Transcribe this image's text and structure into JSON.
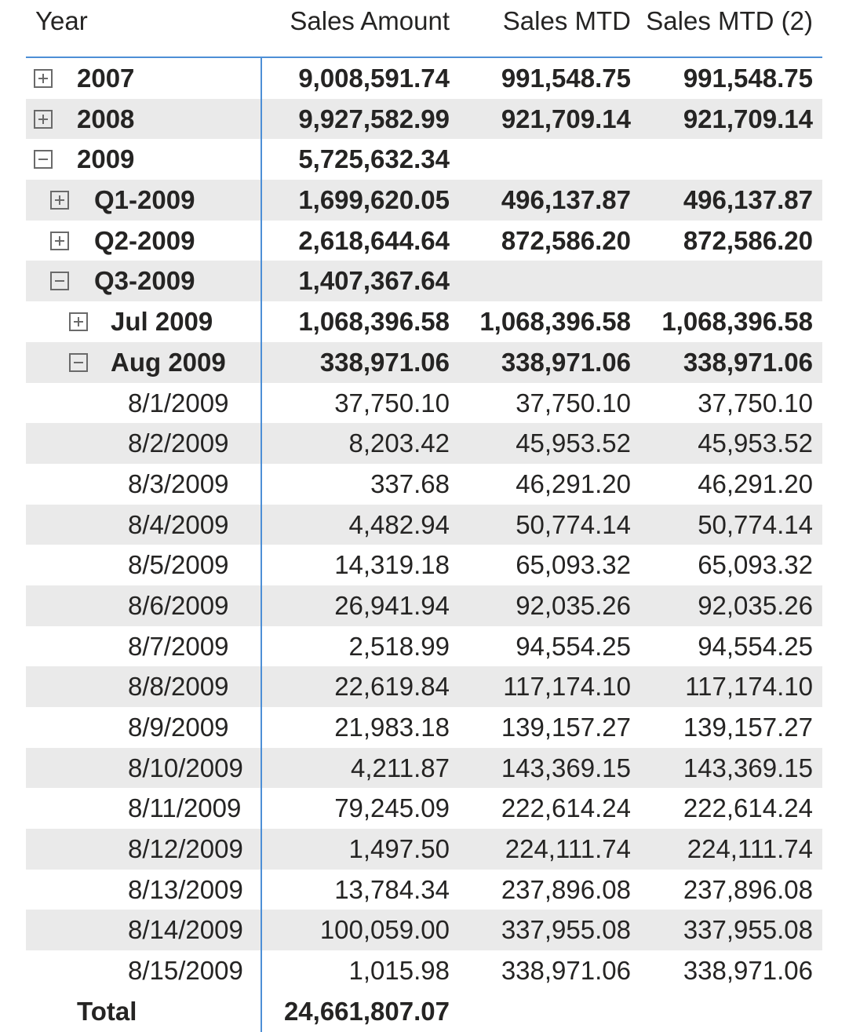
{
  "headers": {
    "year": "Year",
    "sales_amount": "Sales Amount",
    "sales_mtd": "Sales MTD",
    "sales_mtd2": "Sales MTD (2)"
  },
  "rows": [
    {
      "label": "2007",
      "level": 0,
      "toggle": "plus",
      "bold": true,
      "alt": false,
      "amount": "9,008,591.74",
      "mtd": "991,548.75",
      "mtd2": "991,548.75"
    },
    {
      "label": "2008",
      "level": 0,
      "toggle": "plus",
      "bold": true,
      "alt": true,
      "amount": "9,927,582.99",
      "mtd": "921,709.14",
      "mtd2": "921,709.14"
    },
    {
      "label": "2009",
      "level": 0,
      "toggle": "minus",
      "bold": true,
      "alt": false,
      "amount": "5,725,632.34",
      "mtd": "",
      "mtd2": ""
    },
    {
      "label": "Q1-2009",
      "level": 1,
      "toggle": "plus",
      "bold": true,
      "alt": true,
      "amount": "1,699,620.05",
      "mtd": "496,137.87",
      "mtd2": "496,137.87"
    },
    {
      "label": "Q2-2009",
      "level": 1,
      "toggle": "plus",
      "bold": true,
      "alt": false,
      "amount": "2,618,644.64",
      "mtd": "872,586.20",
      "mtd2": "872,586.20"
    },
    {
      "label": "Q3-2009",
      "level": 1,
      "toggle": "minus",
      "bold": true,
      "alt": true,
      "amount": "1,407,367.64",
      "mtd": "",
      "mtd2": ""
    },
    {
      "label": "Jul 2009",
      "level": 2,
      "toggle": "plus",
      "bold": true,
      "alt": false,
      "amount": "1,068,396.58",
      "mtd": "1,068,396.58",
      "mtd2": "1,068,396.58"
    },
    {
      "label": "Aug 2009",
      "level": 2,
      "toggle": "minus",
      "bold": true,
      "alt": true,
      "amount": "338,971.06",
      "mtd": "338,971.06",
      "mtd2": "338,971.06"
    },
    {
      "label": "8/1/2009",
      "level": 3,
      "toggle": "",
      "bold": false,
      "alt": false,
      "amount": "37,750.10",
      "mtd": "37,750.10",
      "mtd2": "37,750.10"
    },
    {
      "label": "8/2/2009",
      "level": 3,
      "toggle": "",
      "bold": false,
      "alt": true,
      "amount": "8,203.42",
      "mtd": "45,953.52",
      "mtd2": "45,953.52"
    },
    {
      "label": "8/3/2009",
      "level": 3,
      "toggle": "",
      "bold": false,
      "alt": false,
      "amount": "337.68",
      "mtd": "46,291.20",
      "mtd2": "46,291.20"
    },
    {
      "label": "8/4/2009",
      "level": 3,
      "toggle": "",
      "bold": false,
      "alt": true,
      "amount": "4,482.94",
      "mtd": "50,774.14",
      "mtd2": "50,774.14"
    },
    {
      "label": "8/5/2009",
      "level": 3,
      "toggle": "",
      "bold": false,
      "alt": false,
      "amount": "14,319.18",
      "mtd": "65,093.32",
      "mtd2": "65,093.32"
    },
    {
      "label": "8/6/2009",
      "level": 3,
      "toggle": "",
      "bold": false,
      "alt": true,
      "amount": "26,941.94",
      "mtd": "92,035.26",
      "mtd2": "92,035.26"
    },
    {
      "label": "8/7/2009",
      "level": 3,
      "toggle": "",
      "bold": false,
      "alt": false,
      "amount": "2,518.99",
      "mtd": "94,554.25",
      "mtd2": "94,554.25"
    },
    {
      "label": "8/8/2009",
      "level": 3,
      "toggle": "",
      "bold": false,
      "alt": true,
      "amount": "22,619.84",
      "mtd": "117,174.10",
      "mtd2": "117,174.10"
    },
    {
      "label": "8/9/2009",
      "level": 3,
      "toggle": "",
      "bold": false,
      "alt": false,
      "amount": "21,983.18",
      "mtd": "139,157.27",
      "mtd2": "139,157.27"
    },
    {
      "label": "8/10/2009",
      "level": 3,
      "toggle": "",
      "bold": false,
      "alt": true,
      "amount": "4,211.87",
      "mtd": "143,369.15",
      "mtd2": "143,369.15"
    },
    {
      "label": "8/11/2009",
      "level": 3,
      "toggle": "",
      "bold": false,
      "alt": false,
      "amount": "79,245.09",
      "mtd": "222,614.24",
      "mtd2": "222,614.24"
    },
    {
      "label": "8/12/2009",
      "level": 3,
      "toggle": "",
      "bold": false,
      "alt": true,
      "amount": "1,497.50",
      "mtd": "224,111.74",
      "mtd2": "224,111.74"
    },
    {
      "label": "8/13/2009",
      "level": 3,
      "toggle": "",
      "bold": false,
      "alt": false,
      "amount": "13,784.34",
      "mtd": "237,896.08",
      "mtd2": "237,896.08"
    },
    {
      "label": "8/14/2009",
      "level": 3,
      "toggle": "",
      "bold": false,
      "alt": true,
      "amount": "100,059.00",
      "mtd": "337,955.08",
      "mtd2": "337,955.08"
    },
    {
      "label": "8/15/2009",
      "level": 3,
      "toggle": "",
      "bold": false,
      "alt": false,
      "amount": "1,015.98",
      "mtd": "338,971.06",
      "mtd2": "338,971.06"
    }
  ],
  "total": {
    "label": "Total",
    "amount": "24,661,807.07",
    "mtd": "",
    "mtd2": ""
  },
  "colors": {
    "accent": "#4d8fd6",
    "band": "#eaeaea",
    "text": "#252423"
  },
  "icons": {
    "expand": "plus-square-icon",
    "collapse": "minus-square-icon"
  }
}
